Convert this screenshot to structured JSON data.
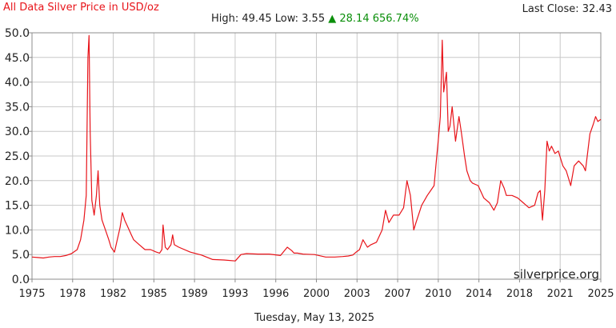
{
  "header": {
    "title": "All Data Silver Price in USD/oz",
    "last_close": "Last Close: 32.43",
    "high_low": "High: 49.45 Low: 3.55",
    "change_arrow": "▲",
    "change": "28.14 656.74%"
  },
  "footer": {
    "date": "Tuesday, May 13, 2025"
  },
  "watermark": "silverprice.org",
  "colors": {
    "line": "#e8141a",
    "positive": "#0b8f0b",
    "grid": "#c8c8c8"
  },
  "chart_data": {
    "type": "line",
    "title": "All Data Silver Price in USD/oz",
    "xlabel": "",
    "ylabel": "",
    "xlim": [
      1975.0,
      2025.36
    ],
    "ylim": [
      0,
      50
    ],
    "grid": true,
    "x_ticks": [
      "1975",
      "1978",
      "1982",
      "1985",
      "1989",
      "1993",
      "1996",
      "2000",
      "2003",
      "2007",
      "2010",
      "2014",
      "2018",
      "2021",
      "2025"
    ],
    "y_ticks": [
      "0.0",
      "5.0",
      "10.0",
      "15.0",
      "20.0",
      "25.0",
      "30.0",
      "35.0",
      "40.0",
      "45.0",
      "50.0"
    ],
    "series": [
      {
        "x": [
          1975.0,
          1975.5,
          1976.0,
          1976.5,
          1977.0,
          1977.5,
          1978.0,
          1978.5,
          1979.0,
          1979.3,
          1979.6,
          1979.8,
          1979.95,
          1980.05,
          1980.15,
          1980.3,
          1980.5,
          1980.7,
          1980.85,
          1981.0,
          1981.2,
          1981.5,
          1981.8,
          1982.0,
          1982.3,
          1982.5,
          1982.8,
          1983.0,
          1983.2,
          1983.5,
          1983.8,
          1984.0,
          1984.5,
          1985.0,
          1985.5,
          1986.0,
          1986.3,
          1986.5,
          1986.6,
          1986.8,
          1987.0,
          1987.3,
          1987.45,
          1987.6,
          1988.0,
          1989.0,
          1990.0,
          1991.0,
          1992.0,
          1993.0,
          1993.5,
          1994.0,
          1995.0,
          1996.0,
          1997.0,
          1997.6,
          1998.0,
          1998.2,
          1998.5,
          1999.0,
          2000.0,
          2001.0,
          2001.8,
          2002.5,
          2003.0,
          2003.4,
          2003.7,
          2004.0,
          2004.3,
          2004.7,
          2005.0,
          2005.5,
          2006.0,
          2006.3,
          2006.6,
          2007.0,
          2007.5,
          2007.9,
          2008.2,
          2008.5,
          2008.8,
          2009.0,
          2009.5,
          2010.0,
          2010.3,
          2010.6,
          2010.8,
          2011.0,
          2011.15,
          2011.32,
          2011.45,
          2011.7,
          2011.85,
          2012.0,
          2012.2,
          2012.5,
          2012.8,
          2013.0,
          2013.3,
          2013.5,
          2013.8,
          2014.0,
          2014.5,
          2015.0,
          2015.5,
          2015.9,
          2016.2,
          2016.5,
          2016.8,
          2017.0,
          2017.5,
          2018.0,
          2018.5,
          2019.0,
          2019.5,
          2019.8,
          2020.0,
          2020.2,
          2020.4,
          2020.6,
          2020.8,
          2021.0,
          2021.3,
          2021.6,
          2022.0,
          2022.3,
          2022.7,
          2023.0,
          2023.4,
          2023.8,
          2024.0,
          2024.4,
          2024.7,
          2024.9,
          2025.1,
          2025.36
        ],
        "y": [
          4.5,
          4.4,
          4.3,
          4.5,
          4.6,
          4.6,
          4.8,
          5.2,
          6.0,
          8.0,
          12.0,
          17.0,
          45.0,
          49.45,
          30.0,
          16.0,
          13.0,
          17.0,
          22.0,
          15.0,
          12.0,
          10.0,
          8.0,
          6.5,
          5.5,
          7.5,
          10.5,
          13.5,
          12.0,
          10.5,
          9.0,
          8.0,
          7.0,
          6.0,
          6.0,
          5.5,
          5.3,
          6.0,
          11.0,
          6.5,
          6.0,
          7.0,
          9.0,
          7.0,
          6.5,
          5.5,
          4.9,
          4.0,
          3.9,
          3.7,
          5.0,
          5.2,
          5.1,
          5.1,
          4.8,
          6.5,
          5.8,
          5.3,
          5.3,
          5.1,
          5.0,
          4.5,
          4.5,
          4.6,
          4.7,
          4.9,
          5.5,
          6.0,
          8.0,
          6.5,
          7.0,
          7.5,
          10.0,
          14.0,
          11.5,
          13.0,
          13.0,
          14.5,
          20.0,
          17.0,
          10.0,
          11.5,
          15.0,
          17.0,
          18.0,
          19.0,
          24.0,
          29.0,
          33.0,
          48.5,
          38.0,
          42.0,
          30.0,
          31.0,
          35.0,
          28.0,
          33.0,
          30.0,
          25.0,
          22.0,
          20.0,
          19.5,
          19.0,
          16.5,
          15.5,
          14.0,
          15.5,
          20.0,
          18.5,
          17.0,
          17.0,
          16.5,
          15.5,
          14.5,
          15.0,
          17.5,
          18.0,
          12.0,
          18.0,
          28.0,
          26.0,
          27.0,
          25.5,
          26.0,
          23.0,
          22.0,
          19.0,
          23.0,
          24.0,
          23.0,
          22.0,
          29.5,
          31.5,
          33.0,
          32.0,
          32.43
        ]
      }
    ]
  }
}
